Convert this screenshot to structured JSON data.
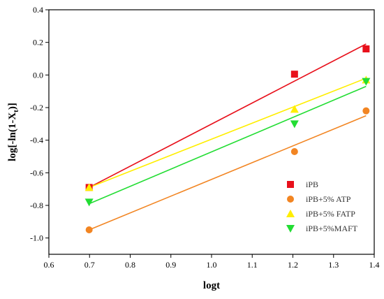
{
  "chart_data": {
    "type": "scatter",
    "xlabel": "logt",
    "ylabel": "log[-ln(1-X_t)]",
    "ylabel_main": "log[-ln(1-X",
    "ylabel_sub": "t",
    "ylabel_tail": ")]",
    "xlim": [
      0.6,
      1.4
    ],
    "ylim": [
      -1.1,
      0.4
    ],
    "xticks": [
      "0.6",
      "0.7",
      "0.8",
      "0.9",
      "1.0",
      "1.1",
      "1.2",
      "1.3",
      "1.4"
    ],
    "yticks": [
      "-1.0",
      "-0.8",
      "-0.6",
      "-0.4",
      "-0.2",
      "0.0",
      "0.2",
      "0.4"
    ],
    "grid": false,
    "legend_position": "bottom-right",
    "series": [
      {
        "name": "iPB",
        "color": "#e8101b",
        "marker": "square",
        "points": [
          [
            0.699,
            -0.69
          ],
          [
            1.204,
            0.005
          ],
          [
            1.38,
            0.16
          ]
        ],
        "fit_line": [
          [
            0.699,
            -0.69
          ],
          [
            1.38,
            0.19
          ]
        ]
      },
      {
        "name": "iPB+5% ATP",
        "color": "#f28522",
        "marker": "circle",
        "points": [
          [
            0.699,
            -0.95
          ],
          [
            1.204,
            -0.47
          ],
          [
            1.38,
            -0.22
          ]
        ],
        "fit_line": [
          [
            0.699,
            -0.95
          ],
          [
            1.38,
            -0.25
          ]
        ]
      },
      {
        "name": "iPB+5% FATP",
        "color": "#ffee00",
        "marker": "triangle-up",
        "points": [
          [
            0.699,
            -0.69
          ],
          [
            1.204,
            -0.21
          ],
          [
            1.38,
            -0.03
          ]
        ],
        "fit_line": [
          [
            0.699,
            -0.69
          ],
          [
            1.38,
            -0.02
          ]
        ]
      },
      {
        "name": "iPB+5%MAFT",
        "color": "#22dd33",
        "marker": "triangle-down",
        "points": [
          [
            0.699,
            -0.78
          ],
          [
            1.204,
            -0.3
          ],
          [
            1.38,
            -0.04
          ]
        ],
        "fit_line": [
          [
            0.699,
            -0.79
          ],
          [
            1.38,
            -0.07
          ]
        ]
      }
    ]
  }
}
